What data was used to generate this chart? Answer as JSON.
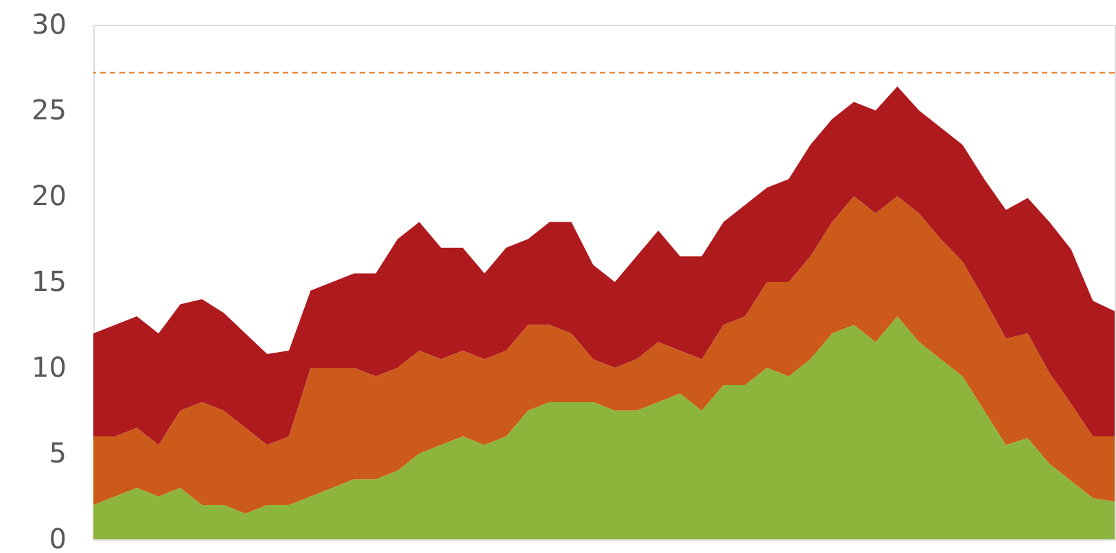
{
  "chart_data": {
    "type": "area",
    "stacked": true,
    "categories": [
      null,
      null,
      null,
      null,
      null,
      null,
      null,
      null,
      null,
      null,
      null,
      null,
      null,
      null,
      null,
      null,
      null,
      null,
      null,
      null,
      null,
      null,
      null,
      null,
      null,
      null,
      null,
      null,
      null,
      null,
      null,
      null,
      null,
      null,
      null,
      null,
      null,
      null,
      null,
      null,
      null,
      null,
      null,
      null,
      null,
      null,
      null,
      null
    ],
    "series": [
      {
        "color": "#8db53c",
        "values": [
          2,
          2.5,
          3,
          2.5,
          3,
          2,
          2,
          1.5,
          2,
          2,
          2.5,
          3,
          3.5,
          3.5,
          4,
          5,
          5.5,
          6,
          5.5,
          6,
          7.5,
          8,
          8,
          8,
          7.5,
          7.5,
          8,
          8.5,
          7.5,
          9,
          9,
          10,
          9.5,
          10.5,
          12,
          12.5,
          11.5,
          13,
          11.5,
          10.5,
          9.5,
          7.5,
          5.5,
          5.9,
          4.4,
          3.4,
          2.4,
          2.2
        ]
      },
      {
        "color": "#cc5a1a",
        "values": [
          4,
          3.5,
          3.5,
          3,
          4.5,
          6,
          5.5,
          5,
          3.5,
          4,
          7.5,
          7,
          6.5,
          6,
          6,
          6,
          5,
          5,
          5,
          5,
          5,
          4.5,
          4,
          2.5,
          2.5,
          3,
          3.5,
          2.5,
          3,
          3.5,
          4,
          5,
          5.5,
          6,
          6.5,
          7.5,
          7.5,
          7,
          7.5,
          7,
          6.7,
          6.5,
          6.2,
          6.1,
          5.3,
          4.5,
          3.6,
          3.8
        ]
      },
      {
        "color": "#ae1a1e",
        "values": [
          6,
          6.5,
          6.5,
          6.5,
          6.2,
          6,
          5.7,
          5.5,
          5.3,
          5,
          4.5,
          5,
          5.5,
          6,
          7.5,
          7.5,
          6.5,
          6,
          5,
          6,
          5,
          6,
          6.5,
          5.5,
          5,
          6,
          6.5,
          5.5,
          6,
          6,
          6.5,
          5.5,
          6,
          6.5,
          6,
          5.5,
          6,
          6.4,
          6,
          6.5,
          6.8,
          7,
          7.5,
          7.9,
          8.8,
          9,
          7.9,
          7.3
        ]
      }
    ],
    "ylim": [
      0,
      30
    ],
    "yticks": [
      0,
      5,
      10,
      15,
      20,
      25,
      30
    ],
    "tick_labels": "y",
    "grid": false,
    "ref_lines": [
      {
        "axis": "y",
        "value": 27.2,
        "color": "#e8883a",
        "line_style": "dashed"
      }
    ]
  }
}
